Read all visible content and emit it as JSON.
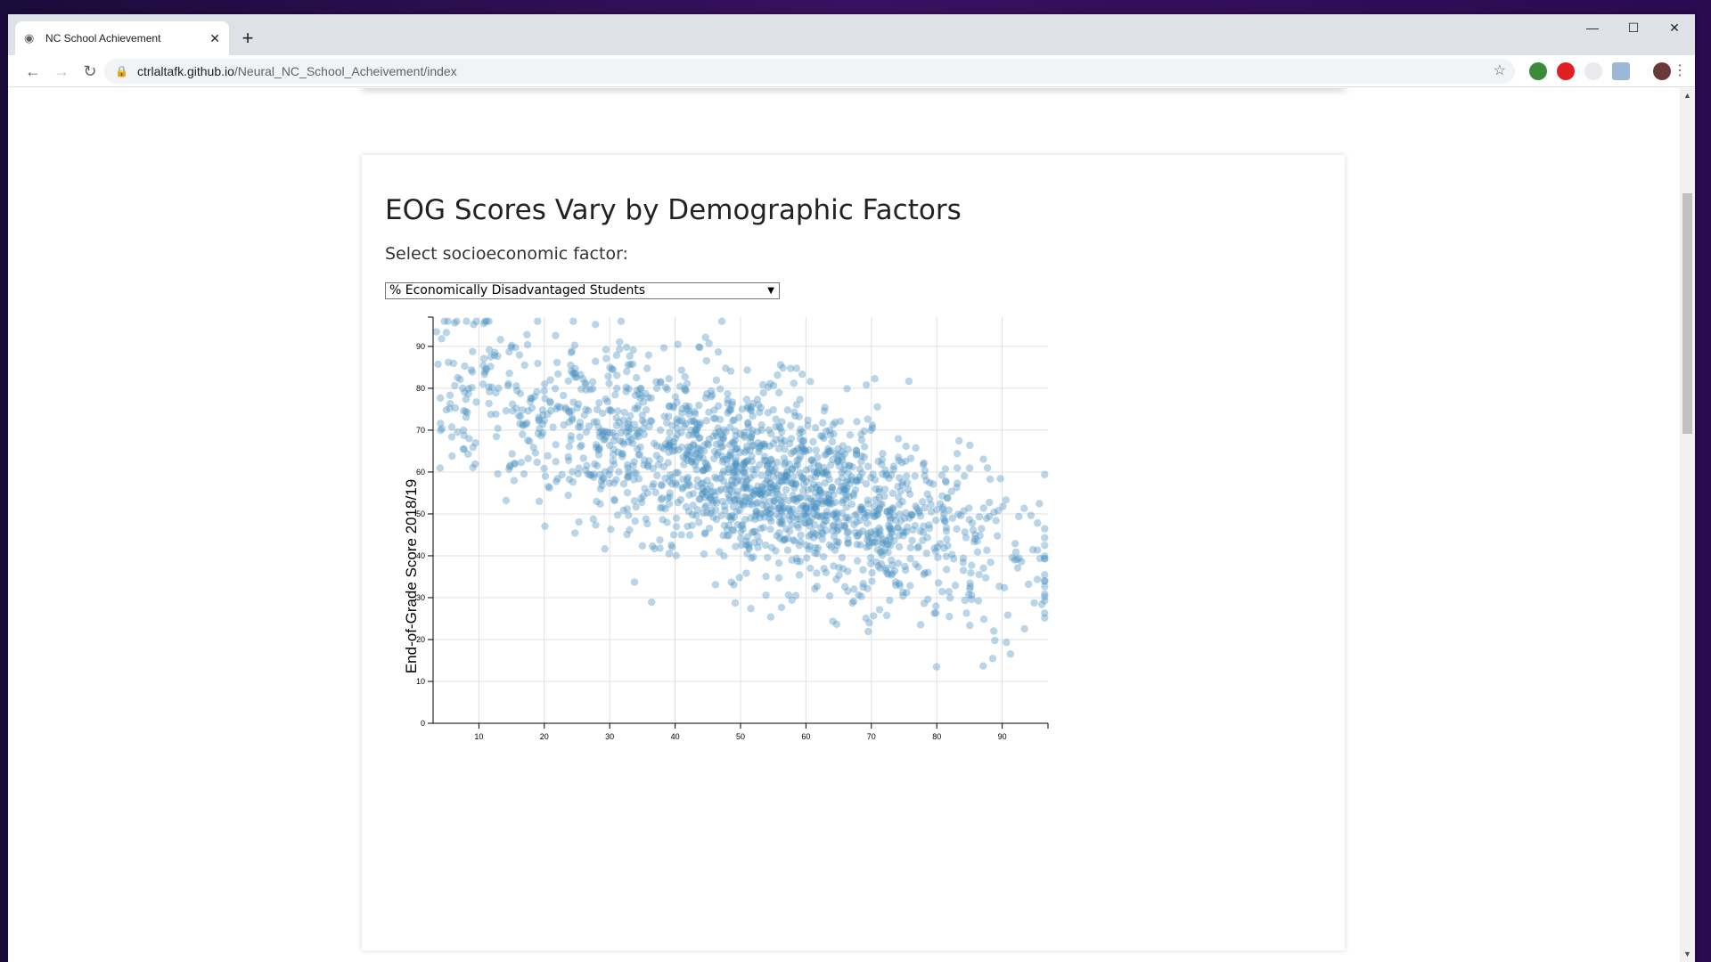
{
  "browser": {
    "tab_title": "NC School Achievement",
    "url_host": "ctrlaltafk.github.io",
    "url_path": "/Neural_NC_School_Acheivement/index"
  },
  "page": {
    "heading": "EOG Scores Vary by Demographic Factors",
    "select_label": "Select socioeconomic factor:",
    "selected_factor": "% Economically Disadvantaged Students"
  },
  "chart_data": {
    "type": "scatter",
    "ylabel": "End-of-Grade Score 2018/19",
    "xlabel": "",
    "xlim": [
      3,
      97
    ],
    "ylim": [
      0,
      97
    ],
    "x_ticks": [
      10,
      20,
      30,
      40,
      50,
      60,
      70,
      80,
      90
    ],
    "y_ticks": [
      0,
      10,
      20,
      30,
      40,
      50,
      60,
      70,
      80,
      90
    ],
    "grid": true,
    "point_color": "#4a90c0",
    "trend": {
      "slope": -0.45,
      "intercept": 82,
      "noise": 11
    },
    "n_points": 1800
  }
}
